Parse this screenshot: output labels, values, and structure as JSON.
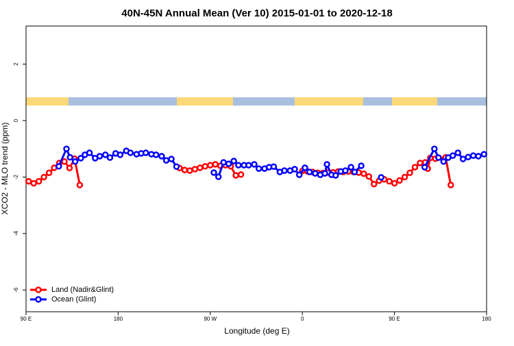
{
  "chart_data": {
    "type": "line",
    "title": "40N-45N Annual Mean (Ver 10)   2015-01-01 to 2020-12-18",
    "x_label": "Longitude (deg E)",
    "y_label": "XCO2 - MLO trend (ppm)",
    "xlim": [
      90,
      540
    ],
    "xticks": [
      {
        "value": 90,
        "label": "90 E"
      },
      {
        "value": 180,
        "label": "180"
      },
      {
        "value": 270,
        "label": "90 W"
      },
      {
        "value": 360,
        "label": "0"
      },
      {
        "value": 450,
        "label": "90 E"
      },
      {
        "value": 540,
        "label": "180"
      }
    ],
    "ylim": [
      -6.77,
      3.35
    ],
    "yticks": [
      -6,
      -4,
      -2,
      0,
      2
    ],
    "legend": "bottom-left",
    "series": [
      {
        "name": "Land (Nadir&Glint)",
        "color": "#ff0000",
        "x": [
          92.5,
          97.5,
          102.5,
          107.5,
          112.5,
          117.5,
          122.5,
          127.5,
          132.5,
          137.5,
          142.5,
          190,
          240,
          245,
          250,
          255,
          260,
          265,
          270,
          275,
          280,
          285,
          290,
          295,
          300,
          330,
          360,
          365,
          370,
          375,
          380,
          385,
          390,
          395,
          400,
          405,
          410,
          415,
          420,
          425,
          430,
          435,
          440,
          445,
          450,
          455,
          460,
          465,
          470,
          475,
          480,
          482.5,
          485,
          490,
          500,
          505
        ],
        "values": [
          -2.15,
          -2.22,
          -2.15,
          -2.0,
          -1.85,
          -1.67,
          -1.5,
          -1.45,
          -1.68,
          -1.35,
          -2.28,
          null,
          -1.68,
          -1.75,
          -1.77,
          -1.72,
          -1.67,
          -1.62,
          -1.58,
          -1.55,
          -1.6,
          -1.58,
          -1.62,
          -1.94,
          -1.91,
          null,
          -1.78,
          -1.8,
          -1.82,
          -1.85,
          -1.86,
          -1.84,
          -1.83,
          -1.8,
          -1.82,
          -1.8,
          -1.82,
          -1.84,
          -1.88,
          -1.98,
          -2.25,
          -2.13,
          -2.08,
          -2.15,
          -2.22,
          -2.12,
          -2.0,
          -1.85,
          -1.65,
          -1.5,
          -1.48,
          -1.7,
          -1.32,
          -1.35,
          -1.3,
          -2.28
        ]
      },
      {
        "name": "Ocean (Glint)",
        "color": "#0000ff",
        "x": [
          122,
          129.5,
          133,
          138,
          143.5,
          147.5,
          152,
          157.5,
          162,
          167.5,
          172,
          177.5,
          182,
          188,
          192,
          198,
          202.5,
          207,
          212.5,
          217,
          222.5,
          227,
          232,
          237,
          255,
          273.5,
          278,
          283,
          288,
          293,
          297.5,
          303,
          307.5,
          313,
          317.5,
          323,
          327.5,
          332,
          338,
          342.5,
          348,
          352.5,
          357,
          362.5,
          367,
          372.5,
          377.5,
          382,
          384,
          388.5,
          392.5,
          397.5,
          402,
          407.5,
          411,
          417.5,
          425,
          437,
          460,
          479.5,
          489,
          493,
          498,
          502.5,
          507,
          512,
          517,
          522,
          527,
          532,
          537.5
        ],
        "values": [
          -1.62,
          -1.0,
          -1.3,
          -1.45,
          -1.33,
          -1.21,
          -1.14,
          -1.33,
          -1.26,
          -1.21,
          -1.31,
          -1.16,
          -1.21,
          -1.07,
          -1.14,
          -1.19,
          -1.16,
          -1.14,
          -1.19,
          -1.21,
          -1.26,
          -1.41,
          -1.36,
          -1.63,
          null,
          -1.84,
          -1.99,
          -1.48,
          -1.53,
          -1.43,
          -1.58,
          -1.58,
          -1.58,
          -1.55,
          -1.7,
          -1.7,
          -1.65,
          -1.63,
          -1.82,
          -1.77,
          -1.77,
          -1.72,
          -1.92,
          -1.67,
          -1.82,
          -1.87,
          -1.92,
          -1.87,
          -1.55,
          -1.92,
          -1.94,
          -1.8,
          -1.77,
          -1.65,
          -1.82,
          -1.6,
          null,
          -2.01,
          null,
          -1.65,
          -1.0,
          -1.31,
          -1.45,
          -1.31,
          -1.24,
          -1.14,
          -1.36,
          -1.29,
          -1.24,
          -1.26,
          -1.19
        ]
      }
    ]
  }
}
